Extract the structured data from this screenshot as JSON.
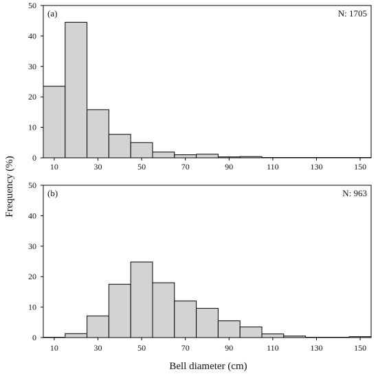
{
  "chart_data": [
    {
      "type": "bar",
      "panel_label": "(a)",
      "annotation": "N: 1705",
      "x_start": 5,
      "bin_width": 10,
      "values": [
        23.5,
        44.5,
        15.8,
        7.7,
        5.0,
        1.9,
        1.0,
        1.2,
        0.3,
        0.4,
        0.1,
        0.1,
        0.1,
        0.1,
        0.1
      ],
      "xticks": [
        "10",
        "30",
        "50",
        "70",
        "90",
        "110",
        "130",
        "150"
      ],
      "yticks": [
        "0",
        "10",
        "20",
        "30",
        "40",
        "50"
      ],
      "xlim": [
        5,
        155
      ],
      "ylim": [
        0,
        50
      ]
    },
    {
      "type": "bar",
      "panel_label": "(b)",
      "annotation": "N: 963",
      "x_start": 5,
      "bin_width": 10,
      "values": [
        0.1,
        1.3,
        7.1,
        17.5,
        24.8,
        18.0,
        12.0,
        9.6,
        5.5,
        3.5,
        1.2,
        0.5,
        0.1,
        0.1,
        0.3
      ],
      "xticks": [
        "10",
        "30",
        "50",
        "70",
        "90",
        "110",
        "130",
        "150"
      ],
      "yticks": [
        "0",
        "10",
        "20",
        "30",
        "40",
        "50"
      ],
      "xlim": [
        5,
        155
      ],
      "ylim": [
        0,
        50
      ]
    }
  ],
  "ylabel": "Frequency (%)",
  "xlabel": "Bell diameter (cm)",
  "colors": {
    "bar_fill": "#d3d3d3",
    "bar_stroke": "#000000",
    "axis": "#000000"
  }
}
